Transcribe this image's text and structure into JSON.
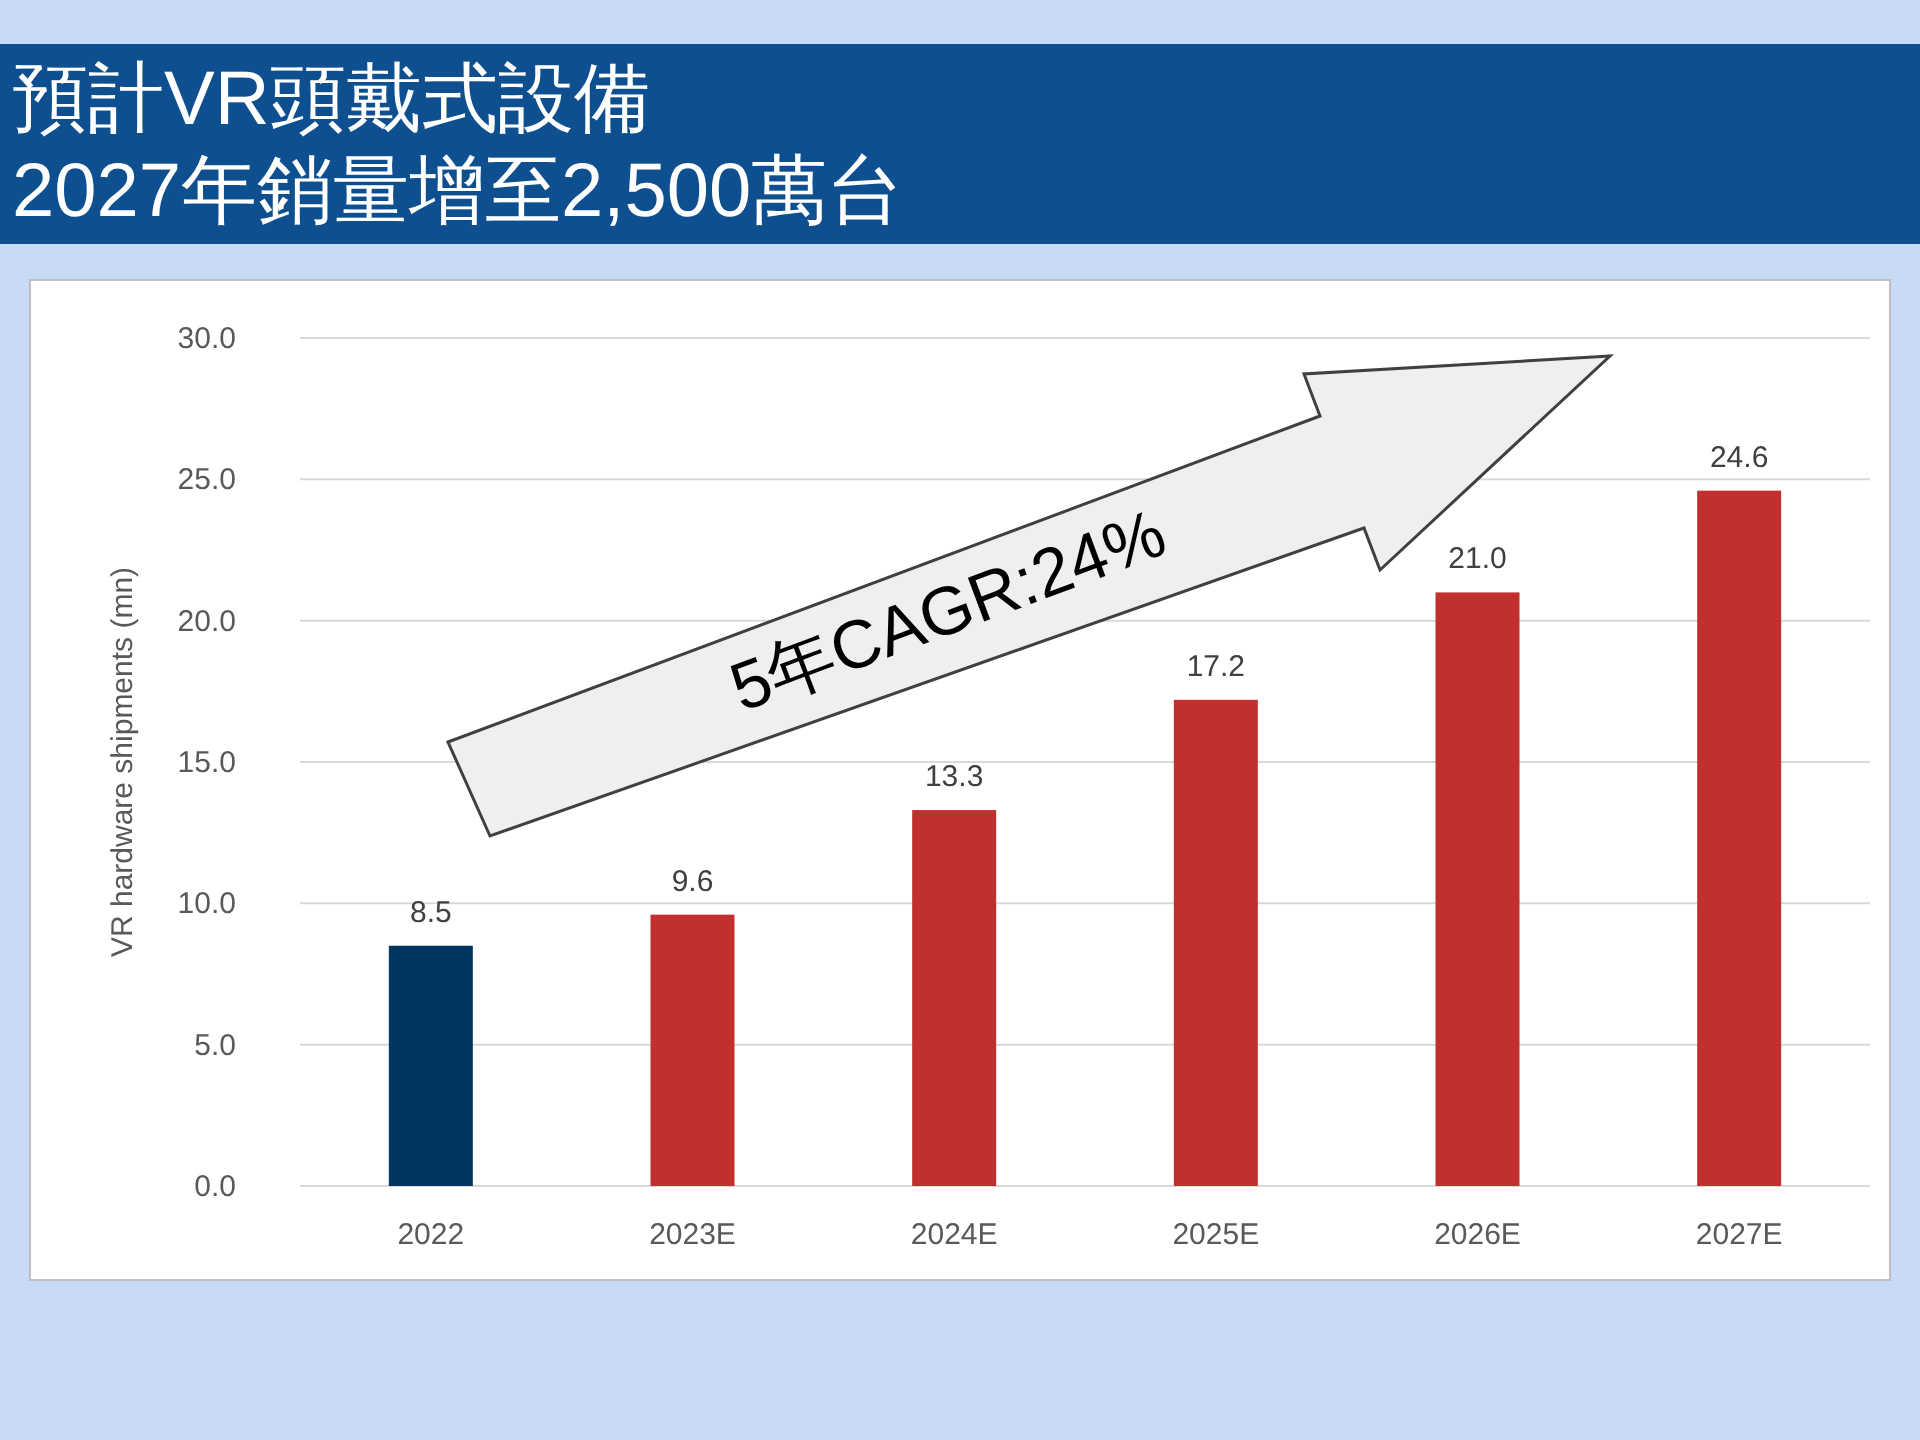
{
  "chart_data": {
    "type": "bar",
    "title": "預計VR頭戴式設備2027年銷量增至2,500萬台",
    "ylabel": "VR hardware shipments (mn)",
    "categories": [
      "2022",
      "2023E",
      "2024E",
      "2025E",
      "2026E",
      "2027E"
    ],
    "values": [
      8.5,
      9.6,
      13.3,
      17.2,
      21.0,
      24.6
    ],
    "colors": [
      "#003660",
      "#c0302f",
      "#c0302f",
      "#c0302f",
      "#c0302f",
      "#c0302f"
    ],
    "ylim": [
      0,
      30
    ],
    "yticks": [
      {
        "value": 0,
        "label": "0.0"
      },
      {
        "value": 5,
        "label": "5.0"
      },
      {
        "value": 10,
        "label": "10.0"
      },
      {
        "value": 15,
        "label": "15.0"
      },
      {
        "value": 20,
        "label": "20.0"
      },
      {
        "value": 25,
        "label": "25.0"
      },
      {
        "value": 30,
        "label": "30.0"
      }
    ],
    "value_labels": [
      "8.5",
      "9.6",
      "13.3",
      "17.2",
      "21.0",
      "24.6"
    ],
    "grid": "y",
    "annotations": [
      "5年CAGR:24%"
    ]
  }
}
